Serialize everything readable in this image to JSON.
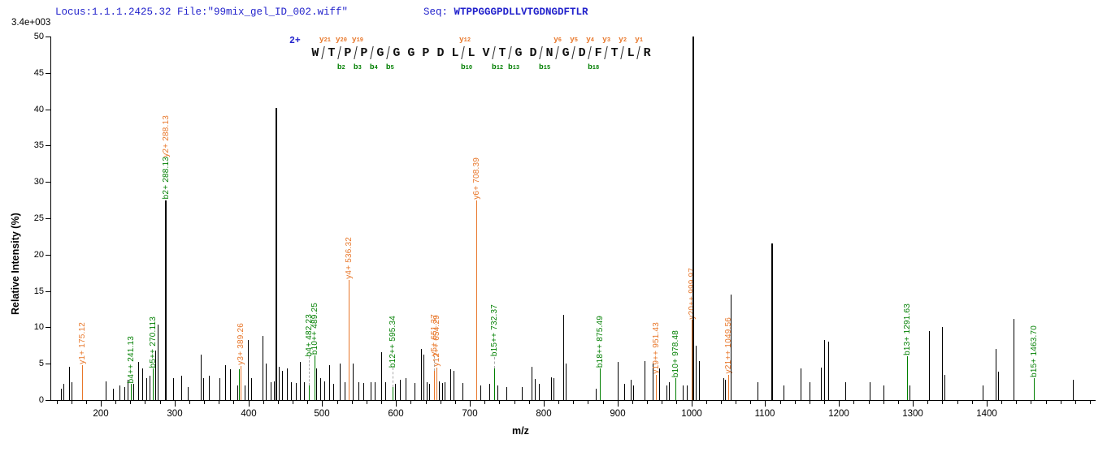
{
  "header": {
    "locus_file": "Locus:1.1.1.2425.32 File:\"99mix_gel_ID_002.wiff\"",
    "seq_label": "Seq: ",
    "sequence": "WTPPGGGPDLLVTGDNGDFTLR",
    "base_peak_intensity": "3.4e+003"
  },
  "colors": {
    "blue": "#2323CC",
    "orange": "#E8772A",
    "green": "#007F00",
    "black": "#000000",
    "dash_grey": "#ABABAB"
  },
  "chart_data": {
    "type": "bar",
    "subtype": "ms2-stick-spectrum",
    "xlabel": "m/z",
    "ylabel": "Relative  Intensity (%)",
    "xlim": [
      135,
      1545
    ],
    "ylim": [
      0,
      50
    ],
    "grid": false,
    "yticks": [
      0,
      5,
      10,
      15,
      20,
      25,
      30,
      35,
      40,
      45,
      50
    ],
    "xticks_major": [
      200,
      300,
      400,
      500,
      600,
      700,
      800,
      900,
      1000,
      1100,
      1200,
      1300,
      1400
    ],
    "xtick_minor_step": 20,
    "xtick_minor_range": [
      140,
      1540
    ],
    "precursor_charge": "2+",
    "fragment_map": {
      "residues": [
        "W",
        "T",
        "P",
        "P",
        "G",
        "G",
        "G",
        "P",
        "D",
        "L",
        "L",
        "V",
        "T",
        "G",
        "D",
        "N",
        "G",
        "D",
        "F",
        "T",
        "L",
        "R"
      ],
      "cuts": [
        {
          "pos": 1,
          "y": "y21"
        },
        {
          "pos": 2,
          "y": "y20",
          "b": "b2"
        },
        {
          "pos": 3,
          "y": "y19",
          "b": "b3"
        },
        {
          "pos": 4,
          "b": "b4"
        },
        {
          "pos": 5,
          "b": "b5"
        },
        {
          "pos": 10,
          "y": "y12",
          "b": "b10"
        },
        {
          "pos": 12,
          "b": "b12"
        },
        {
          "pos": 13,
          "b": "b13"
        },
        {
          "pos": 15,
          "b": "b15"
        },
        {
          "pos": 16,
          "y": "y6"
        },
        {
          "pos": 17,
          "y": "y5"
        },
        {
          "pos": 18,
          "y": "y4",
          "b": "b18"
        },
        {
          "pos": 19,
          "y": "y3"
        },
        {
          "pos": 20,
          "y": "y2"
        },
        {
          "pos": 21,
          "y": "y1"
        }
      ]
    },
    "peaks": [
      {
        "mz": 146,
        "h": 1.6
      },
      {
        "mz": 149,
        "h": 2.2
      },
      {
        "mz": 157,
        "h": 4.6
      },
      {
        "mz": 160,
        "h": 2.4
      },
      {
        "mz": 175.12,
        "h": 4.8,
        "c": "o",
        "labels": [
          {
            "t": "y1+ 175.12",
            "c": "o"
          }
        ]
      },
      {
        "mz": 207,
        "h": 2.6
      },
      {
        "mz": 216,
        "h": 1.6
      },
      {
        "mz": 225,
        "h": 2.0
      },
      {
        "mz": 232,
        "h": 1.8
      },
      {
        "mz": 236,
        "h": 2.8
      },
      {
        "mz": 241.13,
        "h": 2.2,
        "c": "g",
        "labels": [
          {
            "t": "b4++ 241.13",
            "c": "g"
          }
        ]
      },
      {
        "mz": 244,
        "h": 2.2
      },
      {
        "mz": 251,
        "h": 5.2
      },
      {
        "mz": 256,
        "h": 4.3
      },
      {
        "mz": 262,
        "h": 3.0
      },
      {
        "mz": 266,
        "h": 3.3
      },
      {
        "mz": 270.11,
        "h": 4.3,
        "c": "g",
        "labels": [
          {
            "t": "b5++ 270.113",
            "c": "g"
          }
        ]
      },
      {
        "mz": 274,
        "h": 6.8
      },
      {
        "mz": 277,
        "h": 10.4
      },
      {
        "mz": 288.13,
        "h": 27.5,
        "w": 2,
        "labels": [
          {
            "t": "b2+ 288.13",
            "c": "g"
          },
          {
            "t": "y2+ 288.13",
            "c": "o"
          }
        ]
      },
      {
        "mz": 298,
        "h": 3.0
      },
      {
        "mz": 309,
        "h": 3.4
      },
      {
        "mz": 318,
        "h": 1.8
      },
      {
        "mz": 335,
        "h": 6.3
      },
      {
        "mz": 339,
        "h": 3.0
      },
      {
        "mz": 346,
        "h": 3.4
      },
      {
        "mz": 361,
        "h": 3.0
      },
      {
        "mz": 368,
        "h": 4.8
      },
      {
        "mz": 375,
        "h": 4.2
      },
      {
        "mz": 385,
        "h": 2.0
      },
      {
        "mz": 387,
        "h": 4.2,
        "c": "g"
      },
      {
        "mz": 389.26,
        "h": 4.7,
        "c": "o",
        "labels": [
          {
            "t": "y3+ 389.26",
            "c": "o"
          }
        ]
      },
      {
        "mz": 395,
        "h": 2.0
      },
      {
        "mz": 399,
        "h": 8.3
      },
      {
        "mz": 404,
        "h": 3.0
      },
      {
        "mz": 419,
        "h": 8.8
      },
      {
        "mz": 424,
        "h": 5.0
      },
      {
        "mz": 430,
        "h": 2.4
      },
      {
        "mz": 434,
        "h": 2.6
      },
      {
        "mz": 438,
        "h": 40.2,
        "w": 2
      },
      {
        "mz": 441,
        "h": 4.6
      },
      {
        "mz": 445,
        "h": 4.0
      },
      {
        "mz": 452,
        "h": 4.3
      },
      {
        "mz": 458,
        "h": 2.4
      },
      {
        "mz": 464,
        "h": 2.3
      },
      {
        "mz": 470,
        "h": 5.2
      },
      {
        "mz": 475,
        "h": 2.5
      },
      {
        "mz": 482.23,
        "h": 2.0,
        "c": "g",
        "dash": 36,
        "labels": [
          {
            "t": "b4+ 482.23",
            "c": "g"
          }
        ]
      },
      {
        "mz": 489.25,
        "h": 6.1,
        "c": "g",
        "labels": [
          {
            "t": "b10++ 489.25",
            "c": "g"
          }
        ]
      },
      {
        "mz": 492,
        "h": 4.4
      },
      {
        "mz": 497,
        "h": 3.0
      },
      {
        "mz": 503,
        "h": 2.6
      },
      {
        "mz": 509,
        "h": 4.8
      },
      {
        "mz": 515,
        "h": 2.2
      },
      {
        "mz": 524,
        "h": 5.0
      },
      {
        "mz": 530,
        "h": 2.4
      },
      {
        "mz": 536.32,
        "h": 16.5,
        "c": "o",
        "labels": [
          {
            "t": "y4+ 536.32",
            "c": "o"
          }
        ]
      },
      {
        "mz": 541,
        "h": 5.0
      },
      {
        "mz": 549,
        "h": 2.4
      },
      {
        "mz": 556,
        "h": 2.3
      },
      {
        "mz": 565,
        "h": 2.5
      },
      {
        "mz": 571,
        "h": 2.4
      },
      {
        "mz": 580,
        "h": 6.6
      },
      {
        "mz": 585,
        "h": 2.5
      },
      {
        "mz": 595.34,
        "h": 1.8,
        "c": "g",
        "dash": 24,
        "labels": [
          {
            "t": "b12++ 595.34",
            "c": "g"
          }
        ]
      },
      {
        "mz": 599,
        "h": 2.2
      },
      {
        "mz": 605,
        "h": 2.8
      },
      {
        "mz": 613,
        "h": 3.0
      },
      {
        "mz": 625,
        "h": 2.3
      },
      {
        "mz": 634,
        "h": 7.0
      },
      {
        "mz": 637,
        "h": 6.2
      },
      {
        "mz": 641,
        "h": 2.5
      },
      {
        "mz": 645,
        "h": 2.2
      },
      {
        "mz": 651.37,
        "h": 4.0,
        "c": "o",
        "dash": 18,
        "labels": [
          {
            "t": "y5+ 651.37",
            "c": "o"
          }
        ]
      },
      {
        "mz": 654.29,
        "h": 4.5,
        "c": "o",
        "labels": [
          {
            "t": "y12++ 654.29",
            "c": "o"
          }
        ]
      },
      {
        "mz": 658,
        "h": 2.6
      },
      {
        "mz": 662,
        "h": 2.3
      },
      {
        "mz": 666,
        "h": 2.4
      },
      {
        "mz": 673,
        "h": 4.2
      },
      {
        "mz": 678,
        "h": 4.0
      },
      {
        "mz": 690,
        "h": 2.3
      },
      {
        "mz": 708.39,
        "h": 27.5,
        "c": "o",
        "labels": [
          {
            "t": "y6+ 708.39",
            "c": "o"
          }
        ]
      },
      {
        "mz": 714,
        "h": 2.0
      },
      {
        "mz": 726,
        "h": 2.2
      },
      {
        "mz": 732.37,
        "h": 4.4,
        "c": "g",
        "dash": 14,
        "labels": [
          {
            "t": "b15++ 732.37",
            "c": "g"
          }
        ]
      },
      {
        "mz": 737,
        "h": 2.0
      },
      {
        "mz": 749,
        "h": 1.8
      },
      {
        "mz": 770,
        "h": 1.8
      },
      {
        "mz": 784,
        "h": 4.6
      },
      {
        "mz": 788,
        "h": 2.9
      },
      {
        "mz": 793,
        "h": 2.2
      },
      {
        "mz": 810,
        "h": 3.1
      },
      {
        "mz": 813,
        "h": 3.0
      },
      {
        "mz": 826,
        "h": 11.7
      },
      {
        "mz": 830,
        "h": 5.0
      },
      {
        "mz": 871,
        "h": 1.6
      },
      {
        "mz": 875.49,
        "h": 4.3,
        "c": "g",
        "labels": [
          {
            "t": "b18++ 875.49",
            "c": "g"
          }
        ]
      },
      {
        "mz": 900,
        "h": 5.2
      },
      {
        "mz": 909,
        "h": 2.2
      },
      {
        "mz": 918,
        "h": 2.8
      },
      {
        "mz": 921,
        "h": 2.0
      },
      {
        "mz": 937,
        "h": 5.4
      },
      {
        "mz": 948,
        "h": 5.0
      },
      {
        "mz": 951.43,
        "h": 3.5,
        "c": "o",
        "labels": [
          {
            "t": "y19++ 951.43",
            "c": "o"
          }
        ]
      },
      {
        "mz": 956,
        "h": 4.3
      },
      {
        "mz": 966,
        "h": 2.0
      },
      {
        "mz": 970,
        "h": 2.4
      },
      {
        "mz": 978.48,
        "h": 3.0,
        "c": "g",
        "labels": [
          {
            "t": "b10+ 978.48",
            "c": "g"
          }
        ]
      },
      {
        "mz": 988,
        "h": 2.0
      },
      {
        "mz": 994,
        "h": 2.0
      },
      {
        "mz": 999.97,
        "h": 11.0,
        "c": "o",
        "labels": [
          {
            "t": "y20++ 999.97",
            "c": "o"
          }
        ]
      },
      {
        "mz": 1003,
        "h": 50,
        "w": 2
      },
      {
        "mz": 1006,
        "h": 7.5
      },
      {
        "mz": 1010,
        "h": 5.4
      },
      {
        "mz": 1043,
        "h": 3.0
      },
      {
        "mz": 1046,
        "h": 2.8
      },
      {
        "mz": 1049.56,
        "h": 3.5,
        "c": "o",
        "labels": [
          {
            "t": "y21++ 1049.56",
            "c": "o"
          }
        ]
      },
      {
        "mz": 1053,
        "h": 14.5
      },
      {
        "mz": 1090,
        "h": 2.5
      },
      {
        "mz": 1109,
        "h": 21.5,
        "w": 2
      },
      {
        "mz": 1125,
        "h": 2.0
      },
      {
        "mz": 1148,
        "h": 4.3
      },
      {
        "mz": 1160,
        "h": 2.5
      },
      {
        "mz": 1175,
        "h": 4.5
      },
      {
        "mz": 1180,
        "h": 8.3
      },
      {
        "mz": 1185,
        "h": 8.0
      },
      {
        "mz": 1208,
        "h": 2.5
      },
      {
        "mz": 1241,
        "h": 2.5
      },
      {
        "mz": 1260,
        "h": 2.0
      },
      {
        "mz": 1291.63,
        "h": 6.0,
        "c": "g",
        "labels": [
          {
            "t": "b13+ 1291.63",
            "c": "g"
          }
        ]
      },
      {
        "mz": 1295,
        "h": 2.0
      },
      {
        "mz": 1322,
        "h": 9.5
      },
      {
        "mz": 1340,
        "h": 10.0
      },
      {
        "mz": 1343,
        "h": 3.5
      },
      {
        "mz": 1394,
        "h": 2.0
      },
      {
        "mz": 1412,
        "h": 7.0
      },
      {
        "mz": 1416,
        "h": 3.9
      },
      {
        "mz": 1436,
        "h": 11.2
      },
      {
        "mz": 1463.7,
        "h": 3.0,
        "c": "g",
        "labels": [
          {
            "t": "b15+ 1463.70",
            "c": "g"
          }
        ]
      },
      {
        "mz": 1517,
        "h": 2.8
      }
    ]
  }
}
